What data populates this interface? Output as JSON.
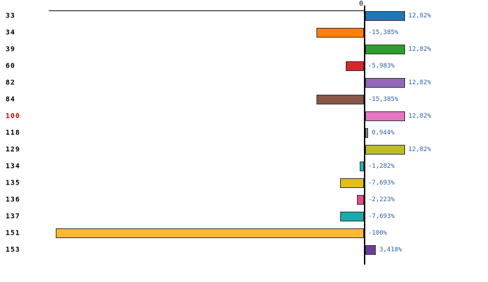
{
  "chart_data": {
    "type": "bar",
    "orientation": "horizontal",
    "title": "",
    "xlabel": "",
    "ylabel": "",
    "axis_zero_label": "0",
    "grid": false,
    "legend": false,
    "xlim": [
      -100,
      18
    ],
    "categories": [
      "33",
      "34",
      "39",
      "60",
      "82",
      "84",
      "100",
      "118",
      "129",
      "134",
      "135",
      "136",
      "137",
      "151",
      "153"
    ],
    "values": [
      12.82,
      -15.385,
      12.82,
      -5.983,
      12.82,
      -15.385,
      12.82,
      0.944,
      12.82,
      -1.282,
      -7.693,
      -2.223,
      -7.693,
      -100,
      3.418
    ],
    "value_labels": [
      "12,82%",
      "-15,385%",
      "12,82%",
      "-5,983%",
      "12,82%",
      "-15,385%",
      "12,82%",
      "0,944%",
      "12,82%",
      "-1,282%",
      "-7,693%",
      "-2,223%",
      "-7,693%",
      "-100%",
      "3,418%"
    ],
    "bar_colors": [
      "#1f77b4",
      "#fd7f0e",
      "#2ca02c",
      "#d62728",
      "#9467bd",
      "#8c564b",
      "#e377c2",
      "#8a8a8a",
      "#bcbd22",
      "#17becf",
      "#e2c019",
      "#e8488b",
      "#18acac",
      "#fdb931",
      "#6a3d9a"
    ],
    "highlighted_category": "100",
    "highlight_color": "#cc0000",
    "value_label_color": "#2a62a8",
    "axis_color": "#000000"
  }
}
